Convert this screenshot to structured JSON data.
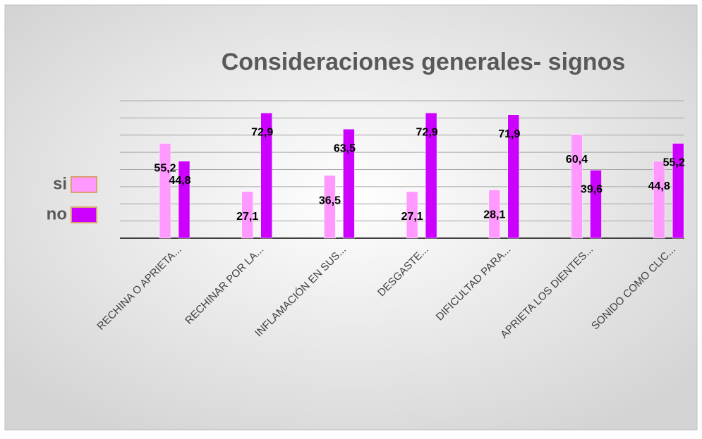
{
  "chart_data": {
    "type": "bar",
    "title": "Consideraciones generales- signos",
    "categories": [
      "RECHINA O APRIETA...",
      "RECHINAR POR LA...",
      "INFLAMACIÓN EN SUS...",
      "DESGASTE...",
      "DIFICULTAD PARA...",
      "APRIETA LOS DIENTES...",
      "SONIDO COMO CLIC..."
    ],
    "series": [
      {
        "name": "si",
        "color": "#ff99ff",
        "values": [
          55.2,
          27.1,
          36.5,
          27.1,
          28.1,
          60.4,
          44.8
        ],
        "value_labels": [
          "55,2",
          "27,1",
          "36,5",
          "27,1",
          "28,1",
          "60,4",
          "44,8"
        ]
      },
      {
        "name": "no",
        "color": "#cc00ff",
        "values": [
          44.8,
          72.9,
          63.5,
          72.9,
          71.9,
          39.6,
          55.2
        ],
        "value_labels": [
          "44,8",
          "72,9",
          "63,5",
          "72,9",
          "71,9",
          "39,6",
          "55,2"
        ]
      }
    ],
    "ylim": [
      0,
      80
    ],
    "yticks": [
      0,
      10,
      20,
      30,
      40,
      50,
      60,
      70,
      80
    ],
    "grid": true,
    "legend": "left"
  }
}
